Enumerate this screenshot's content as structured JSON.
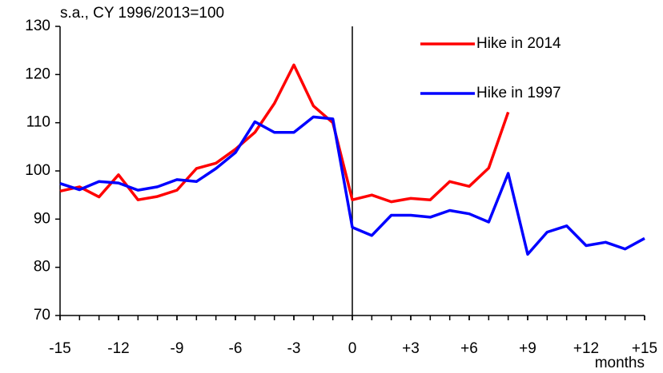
{
  "chart_data": {
    "type": "line",
    "subtitle": "s.a.,  CY 1996/2013=100",
    "x_label": "months",
    "x": [
      -15,
      -14,
      -13,
      -12,
      -11,
      -10,
      -9,
      -8,
      -7,
      -6,
      -5,
      -4,
      -3,
      -2,
      -1,
      0,
      1,
      2,
      3,
      4,
      5,
      6,
      7,
      8,
      9,
      10,
      11,
      12,
      13,
      14,
      15
    ],
    "series": [
      {
        "name": "Hike in 2014",
        "color": "#ff0000",
        "values": [
          95.8,
          96.7,
          94.6,
          99.2,
          94.0,
          94.7,
          96.0,
          100.5,
          101.6,
          104.5,
          108.0,
          114.0,
          122.0,
          113.5,
          110.0,
          94.0,
          95.0,
          93.6,
          94.3,
          94.0,
          97.8,
          96.8,
          100.6,
          112.2,
          null,
          null,
          null,
          null,
          null,
          null,
          null
        ]
      },
      {
        "name": "Hike in 1997",
        "color": "#0000ff",
        "values": [
          97.4,
          96.1,
          97.8,
          97.5,
          96.0,
          96.7,
          98.2,
          97.8,
          100.5,
          103.8,
          110.2,
          108.0,
          108.0,
          111.2,
          110.8,
          88.3,
          86.6,
          90.8,
          90.8,
          90.4,
          91.8,
          91.1,
          89.4,
          99.5,
          82.7,
          87.3,
          88.6,
          84.5,
          85.2,
          83.8,
          86.0
        ]
      }
    ],
    "xlim": [
      -15,
      15
    ],
    "xticks": [
      -15,
      -12,
      -9,
      -6,
      -3,
      0,
      {
        "value": 3,
        "label": "+3"
      },
      {
        "value": 6,
        "label": "+6"
      },
      {
        "value": 9,
        "label": "+9"
      },
      {
        "value": 12,
        "label": "+12"
      },
      {
        "value": 15,
        "label": "+15"
      }
    ],
    "ylim": [
      70,
      130
    ],
    "yticks": [
      70,
      80,
      90,
      100,
      110,
      120,
      130
    ],
    "reference_line_x": 0,
    "grid": false,
    "legend": "top-right"
  }
}
